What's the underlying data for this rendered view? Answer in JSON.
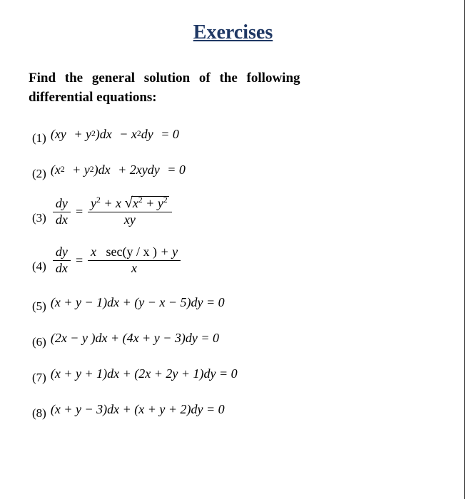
{
  "title": "Exercises",
  "instruction_line1": "Find the general solution of the following",
  "instruction_line2": "differential equations:",
  "colors": {
    "title_color": "#1f3864",
    "text_color": "#000000",
    "background": "#ffffff"
  },
  "equations": {
    "n1": "(1)",
    "n2": "(2)",
    "n3": "(3)",
    "n4": "(4)",
    "n5": "(5)",
    "n6": "(6)",
    "n7": "(7)",
    "n8": "(8)",
    "eq1_p1": "(xy",
    "eq1_p2": "+ y",
    "sup2": "2",
    "eq1_p3": ")dx",
    "eq1_p4": "− x",
    "eq1_p5": "dy",
    "eq_zero": "= 0",
    "eq2_p1": "(x",
    "eq2_p2": "+ y",
    "eq2_p3": ")dx",
    "eq2_p4": "+ 2xydy",
    "eq3_dydx_top": "dy",
    "eq3_dydx_bot": "dx",
    "eq_equals": "=",
    "eq3_num_p1": "y",
    "eq3_num_p2": "+ x",
    "eq3_sqrt_p1": "x",
    "eq3_sqrt_p2": "+ y",
    "eq3_den": "xy",
    "eq4_num_p1": "x",
    "eq4_num_sec": "sec(y / x )",
    "eq4_num_p2": "+ y",
    "eq4_den": "x",
    "eq5": "(x + y − 1)dx + (y − x − 5)dy = 0",
    "eq6": "(2x − y )dx + (4x + y − 3)dy = 0",
    "eq7": "(x + y + 1)dx + (2x + 2y + 1)dy = 0",
    "eq8": "(x + y − 3)dx + (x + y + 2)dy = 0"
  }
}
